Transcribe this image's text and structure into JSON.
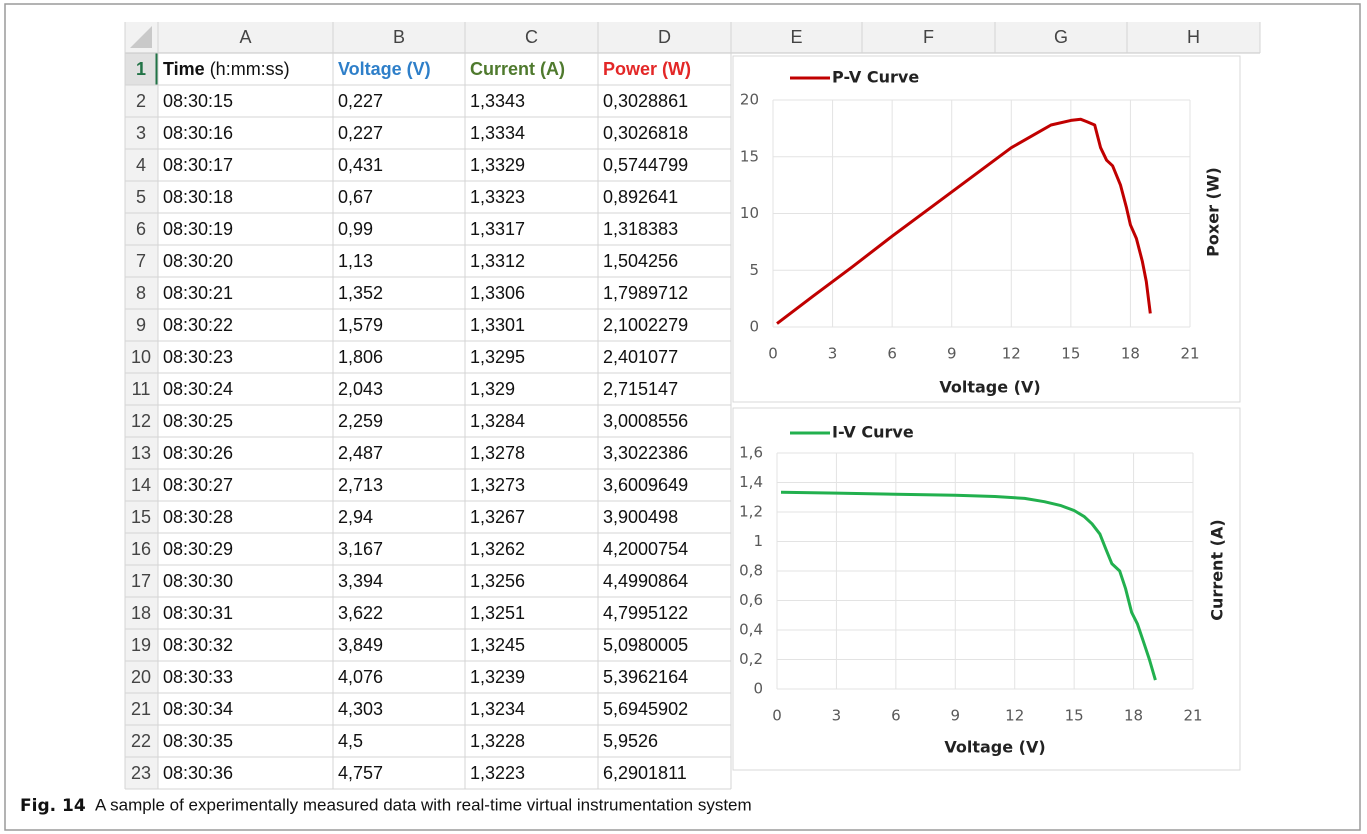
{
  "spreadsheet": {
    "column_headers": [
      "A",
      "B",
      "C",
      "D",
      "E",
      "F",
      "G",
      "H"
    ],
    "row_numbers": [
      1,
      2,
      3,
      4,
      5,
      6,
      7,
      8,
      9,
      10,
      11,
      12,
      13,
      14,
      15,
      16,
      17,
      18,
      19,
      20,
      21,
      22,
      23
    ],
    "header_row": [
      [
        "Time",
        "(h:mm:ss)"
      ],
      "Voltage (V)",
      "Current (A)",
      "Power (W)"
    ],
    "header_colors": [
      "#111111",
      "#2e7fc9",
      "#4f7a2e",
      "#e32727"
    ],
    "rows": [
      [
        "08:30:15",
        "0,227",
        "1,3343",
        "0,3028861"
      ],
      [
        "08:30:16",
        "0,227",
        "1,3334",
        "0,3026818"
      ],
      [
        "08:30:17",
        "0,431",
        "1,3329",
        "0,5744799"
      ],
      [
        "08:30:18",
        "0,67",
        "1,3323",
        "0,892641"
      ],
      [
        "08:30:19",
        "0,99",
        "1,3317",
        "1,318383"
      ],
      [
        "08:30:20",
        "1,13",
        "1,3312",
        "1,504256"
      ],
      [
        "08:30:21",
        "1,352",
        "1,3306",
        "1,7989712"
      ],
      [
        "08:30:22",
        "1,579",
        "1,3301",
        "2,1002279"
      ],
      [
        "08:30:23",
        "1,806",
        "1,3295",
        "2,401077"
      ],
      [
        "08:30:24",
        "2,043",
        "1,329",
        "2,715147"
      ],
      [
        "08:30:25",
        "2,259",
        "1,3284",
        "3,0008556"
      ],
      [
        "08:30:26",
        "2,487",
        "1,3278",
        "3,3022386"
      ],
      [
        "08:30:27",
        "2,713",
        "1,3273",
        "3,6009649"
      ],
      [
        "08:30:28",
        "2,94",
        "1,3267",
        "3,900498"
      ],
      [
        "08:30:29",
        "3,167",
        "1,3262",
        "4,2000754"
      ],
      [
        "08:30:30",
        "3,394",
        "1,3256",
        "4,4990864"
      ],
      [
        "08:30:31",
        "3,622",
        "1,3251",
        "4,7995122"
      ],
      [
        "08:30:32",
        "3,849",
        "1,3245",
        "5,0980005"
      ],
      [
        "08:30:33",
        "4,076",
        "1,3239",
        "5,3962164"
      ],
      [
        "08:30:34",
        "4,303",
        "1,3234",
        "5,6945902"
      ],
      [
        "08:30:35",
        "4,5",
        "1,3228",
        "5,9526"
      ],
      [
        "08:30:36",
        "4,757",
        "1,3223",
        "6,2901811"
      ]
    ]
  },
  "chart_data": [
    {
      "type": "line",
      "x_label": "Voltage (V)",
      "y_label": "Poxer (W)",
      "x": [
        0.2,
        2,
        4,
        6,
        8,
        10,
        12,
        14,
        15,
        15.5,
        15.8,
        16.2,
        16.5,
        16.8,
        17.1,
        17.5,
        17.8,
        18,
        18.3,
        18.6,
        18.8,
        19
      ],
      "series": [
        {
          "name": "P-V Curve",
          "color": "#c00000",
          "values": [
            0.3,
            2.7,
            5.3,
            8,
            10.6,
            13.2,
            15.8,
            17.8,
            18.2,
            18.3,
            18.1,
            17.8,
            15.8,
            14.7,
            14.2,
            12.5,
            10.5,
            9,
            7.8,
            5.8,
            4,
            1.2
          ]
        }
      ],
      "xlim": [
        0,
        21
      ],
      "xticks": [
        0,
        3,
        6,
        9,
        12,
        15,
        18,
        21
      ],
      "ylim": [
        0,
        20
      ],
      "yticks": [
        0,
        5,
        10,
        15,
        20
      ],
      "grid": true
    },
    {
      "type": "line",
      "x_label": "Voltage (V)",
      "y_label": "Current (A)",
      "x": [
        0.2,
        3,
        6,
        9,
        11,
        12.5,
        13.5,
        14.3,
        15,
        15.5,
        15.9,
        16.3,
        16.6,
        16.9,
        17.3,
        17.6,
        17.9,
        18.2,
        18.5,
        18.8,
        19.1
      ],
      "series": [
        {
          "name": "I-V Curve",
          "color": "#22b04e",
          "values": [
            1.334,
            1.328,
            1.32,
            1.313,
            1.305,
            1.292,
            1.27,
            1.245,
            1.21,
            1.17,
            1.12,
            1.05,
            0.95,
            0.85,
            0.8,
            0.68,
            0.52,
            0.44,
            0.32,
            0.2,
            0.06
          ]
        }
      ],
      "xlim": [
        0,
        21
      ],
      "xticks": [
        0,
        3,
        6,
        9,
        12,
        15,
        18,
        21
      ],
      "ylim": [
        0,
        1.6
      ],
      "yticks": [
        0,
        {
          "value": 0.2,
          "label": "0,2"
        },
        {
          "value": 0.4,
          "label": "0,4"
        },
        {
          "value": 0.6,
          "label": "0,6"
        },
        {
          "value": 0.8,
          "label": "0,8"
        },
        1,
        {
          "value": 1.2,
          "label": "1,2"
        },
        {
          "value": 1.4,
          "label": "1,4"
        },
        {
          "value": 1.6,
          "label": "1,6"
        }
      ],
      "grid": true
    }
  ],
  "caption": {
    "label": "Fig. 14",
    "text": "A sample of experimentally measured data with real-time virtual instrumentation system"
  }
}
